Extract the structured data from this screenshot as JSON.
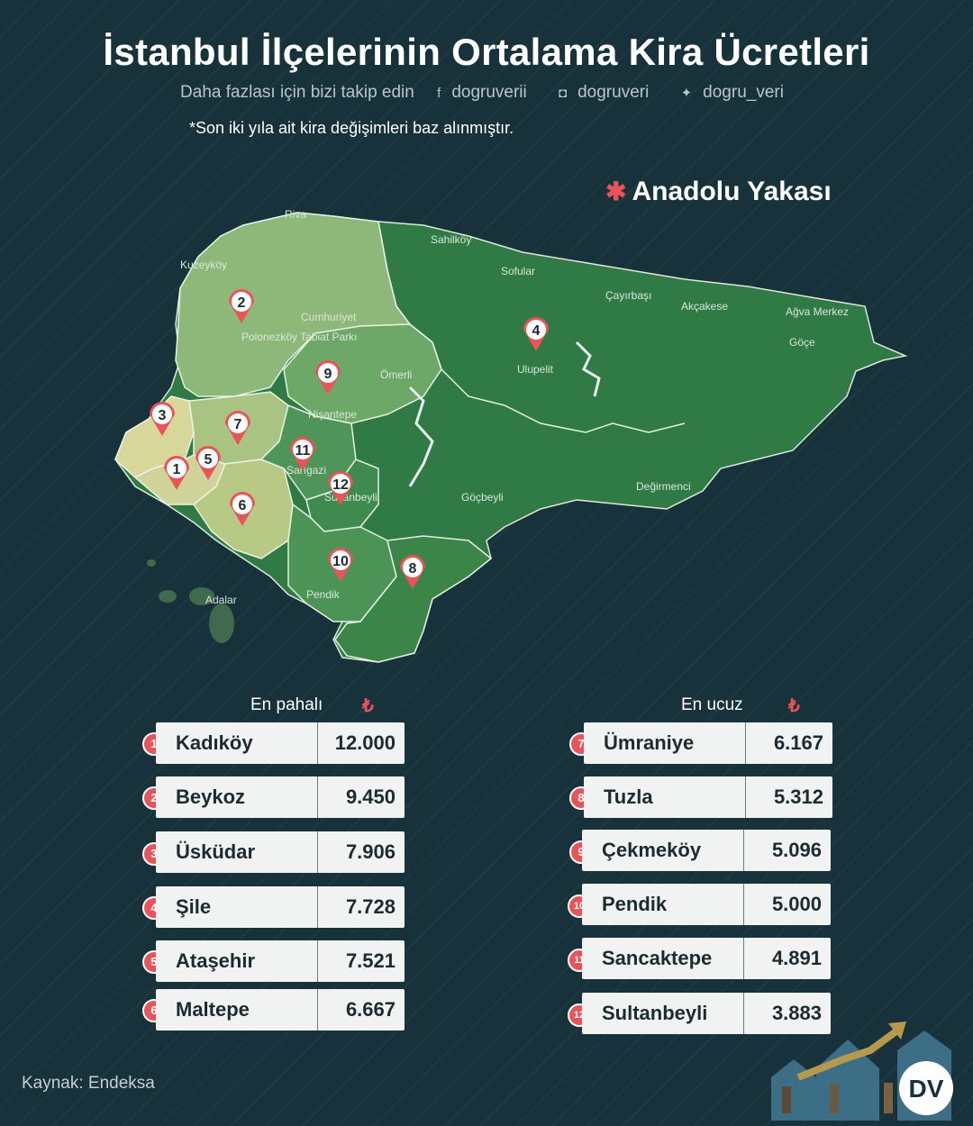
{
  "title": "İstanbul İlçelerinin Ortalama Kira Ücretleri",
  "follow": {
    "text": "Daha fazlası için bizi takip edin",
    "facebook": "dogruverii",
    "instagram": "dogruveri",
    "twitter": "dogru_veri"
  },
  "note": "*Son iki yıla ait kira değişimleri baz alınmıştır.",
  "region": "Anadolu Yakası",
  "map_labels": [
    "Riva",
    "Cumhuriyet",
    "Polonezköy Tabiat Parkı",
    "Ömerli",
    "Nişantepe",
    "Sahilköy",
    "Sofular",
    "Çayırbaşı",
    "Akçakese",
    "Ağva Merkez",
    "Göçe",
    "Ulupelit",
    "Değirmenci",
    "Göçbeyli",
    "Sarıgazi",
    "Sultanbeyli",
    "Pendik",
    "Adalar",
    "Kuzeyköy"
  ],
  "expensive": {
    "header": "En pahalı",
    "currency": "₺",
    "rows": [
      {
        "num": "1",
        "name": "Kadıköy",
        "value": "12.000"
      },
      {
        "num": "2",
        "name": "Beykoz",
        "value": "9.450"
      },
      {
        "num": "3",
        "name": "Üsküdar",
        "value": "7.906"
      },
      {
        "num": "4",
        "name": "Şile",
        "value": "7.728"
      },
      {
        "num": "5",
        "name": "Ataşehir",
        "value": "7.521"
      },
      {
        "num": "6",
        "name": "Maltepe",
        "value": "6.667"
      }
    ]
  },
  "cheap": {
    "header": "En ucuz",
    "currency": "₺",
    "rows": [
      {
        "num": "7",
        "name": "Ümraniye",
        "value": "6.167"
      },
      {
        "num": "8",
        "name": "Tuzla",
        "value": "5.312"
      },
      {
        "num": "9",
        "name": "Çekmeköy",
        "value": "5.096"
      },
      {
        "num": "10",
        "name": "Pendik",
        "value": "5.000"
      },
      {
        "num": "11",
        "name": "Sancaktepe",
        "value": "4.891"
      },
      {
        "num": "12",
        "name": "Sultanbeyli",
        "value": "3.883"
      }
    ]
  },
  "source": "Kaynak: Endeksa",
  "logo_text": "DV",
  "colors": {
    "background": "#17323a",
    "accent": "#e8545a",
    "row_bg": "#f1f3f3",
    "map_dark": "#2f7a45",
    "map_light": "#c8cf8a"
  }
}
